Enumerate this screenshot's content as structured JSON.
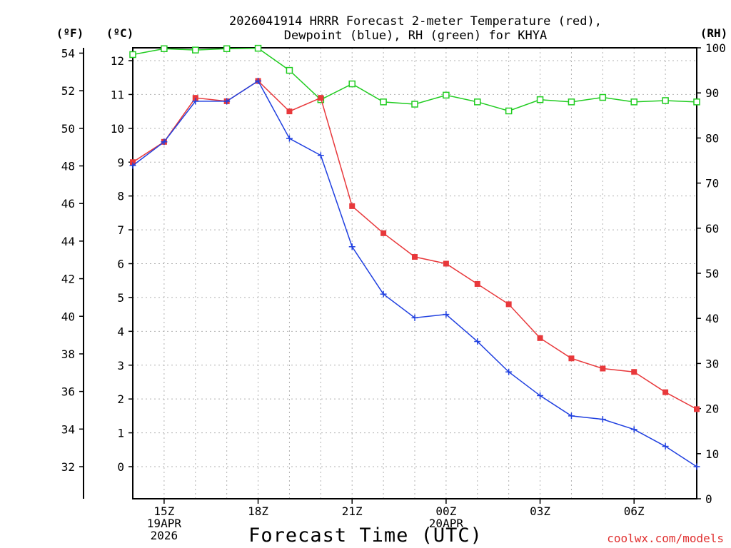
{
  "chart_data": {
    "type": "line",
    "title_lines": [
      "2026041914 HRRR Forecast 2-meter Temperature (red),",
      "Dewpoint (blue), RH (green) for KHYA"
    ],
    "units": {
      "fahrenheit": "(ºF)",
      "celsius": "(ºC)",
      "rh": "(RH)"
    },
    "xlabel": "Forecast Time (UTC)",
    "credit": "coolwx.com/models",
    "hours_from_14Z": [
      0,
      1,
      2,
      3,
      4,
      5,
      6,
      7,
      8,
      9,
      10,
      11,
      12,
      13,
      14,
      15,
      16,
      17,
      18
    ],
    "x_ticks": [
      {
        "hour": 1,
        "lines": [
          "15Z",
          "19APR",
          "2026"
        ]
      },
      {
        "hour": 4,
        "lines": [
          "18Z"
        ]
      },
      {
        "hour": 7,
        "lines": [
          "21Z"
        ]
      },
      {
        "hour": 10,
        "lines": [
          "00Z",
          "20APR"
        ]
      },
      {
        "hour": 13,
        "lines": [
          "03Z"
        ]
      },
      {
        "hour": 16,
        "lines": [
          "06Z"
        ]
      }
    ],
    "xlim": [
      0,
      18
    ],
    "celsius_axis": {
      "range": [
        -1,
        12.2
      ],
      "ticks": [
        0,
        1,
        2,
        3,
        4,
        5,
        6,
        7,
        8,
        9,
        10,
        11,
        12
      ]
    },
    "fahrenheit_axis": {
      "ticks": [
        32,
        34,
        36,
        38,
        40,
        42,
        44,
        46,
        48,
        50,
        52,
        54
      ]
    },
    "rh_axis": {
      "range": [
        0,
        100
      ],
      "ticks": [
        0,
        10,
        20,
        30,
        40,
        50,
        60,
        70,
        80,
        90,
        100
      ]
    },
    "series": [
      {
        "name": "Temperature",
        "units": "°C",
        "color": "#e8383b",
        "marker": "filled-square",
        "values": [
          9.0,
          9.6,
          10.9,
          10.8,
          11.4,
          10.5,
          10.9,
          7.7,
          6.9,
          6.2,
          6.0,
          5.4,
          4.8,
          3.8,
          3.2,
          2.9,
          2.8,
          2.2,
          1.7
        ]
      },
      {
        "name": "Dewpoint",
        "units": "°C",
        "color": "#2040e0",
        "marker": "plus",
        "values": [
          8.9,
          9.6,
          10.8,
          10.8,
          11.4,
          9.7,
          9.2,
          6.5,
          5.1,
          4.4,
          4.5,
          3.7,
          2.8,
          2.1,
          1.5,
          1.4,
          1.1,
          0.6,
          0.0
        ]
      },
      {
        "name": "RH",
        "units": "%",
        "color": "#20cc20",
        "marker": "open-square",
        "values": [
          98.5,
          99.8,
          99.5,
          99.8,
          99.9,
          95.0,
          88.5,
          92.0,
          88.0,
          87.5,
          89.5,
          88.0,
          86.0,
          88.5,
          88.0,
          89.0,
          88.0,
          88.3,
          88.0
        ]
      }
    ]
  }
}
